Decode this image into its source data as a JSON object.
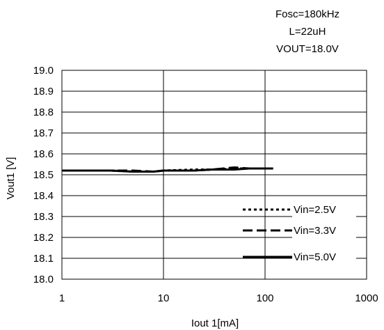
{
  "chart_data": {
    "type": "line",
    "annotations": [
      "Fosc=180kHz",
      "L=22uH",
      "VOUT=18.0V"
    ],
    "xlabel": "Iout 1[mA]",
    "ylabel": "Vout1 [V]",
    "xscale": "log",
    "xlim": [
      1,
      1000
    ],
    "ylim": [
      18.0,
      19.0
    ],
    "xticks": [
      "1",
      "10",
      "100",
      "1000"
    ],
    "yticks": [
      "18.0",
      "18.1",
      "18.2",
      "18.3",
      "18.4",
      "18.5",
      "18.6",
      "18.7",
      "18.8",
      "18.9",
      "19.0"
    ],
    "grid": true,
    "legend_position": "bottom-right",
    "series": [
      {
        "name": "Vin=2.5V",
        "style": "dotted",
        "color": "#000000",
        "x": [
          1,
          2,
          3,
          5,
          8,
          10,
          20,
          30,
          50,
          70,
          100,
          120
        ],
        "y": [
          18.52,
          18.52,
          18.52,
          18.515,
          18.515,
          18.52,
          18.525,
          18.525,
          18.53,
          18.53,
          18.53,
          18.53
        ]
      },
      {
        "name": "Vin=3.3V",
        "style": "dashed",
        "color": "#000000",
        "x": [
          1,
          2,
          3,
          5,
          8,
          10,
          20,
          30,
          50,
          70,
          100,
          120
        ],
        "y": [
          18.52,
          18.52,
          18.52,
          18.52,
          18.515,
          18.52,
          18.52,
          18.525,
          18.535,
          18.53,
          18.53,
          18.53
        ]
      },
      {
        "name": "Vin=5.0V",
        "style": "solid",
        "color": "#000000",
        "x": [
          1,
          2,
          3,
          5,
          8,
          10,
          20,
          30,
          50,
          70,
          100,
          120
        ],
        "y": [
          18.52,
          18.52,
          18.52,
          18.515,
          18.515,
          18.52,
          18.52,
          18.525,
          18.525,
          18.53,
          18.53,
          18.53
        ]
      }
    ]
  }
}
